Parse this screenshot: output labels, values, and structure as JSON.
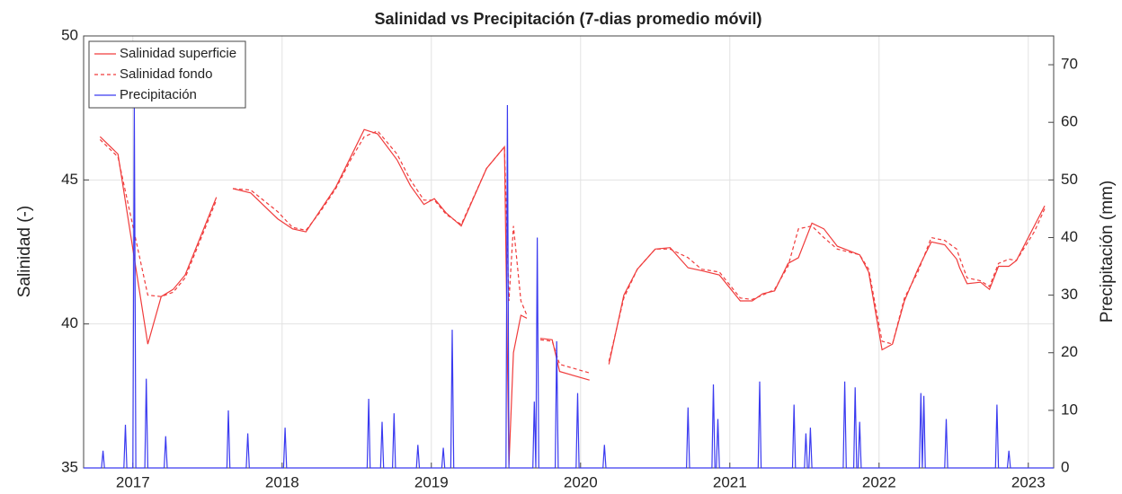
{
  "chart_data": {
    "type": "line",
    "title": "Salinidad vs Precipitación (7-dias promedio móvil)",
    "y_label": "Salinidad (-)",
    "y2_label": "Precipitación (mm)",
    "xlim": [
      2016.67,
      2023.17
    ],
    "xticks": [
      2017,
      2018,
      2019,
      2020,
      2021,
      2022,
      2023
    ],
    "ylim": [
      35,
      50
    ],
    "yticks": [
      35,
      40,
      45,
      50
    ],
    "y2lim": [
      0,
      75
    ],
    "y2ticks": [
      0,
      10,
      20,
      30,
      40,
      50,
      60,
      70
    ],
    "grid": true,
    "legend": "upper left",
    "x": [
      2016.78,
      2016.9,
      2017.1,
      2017.19,
      2017.27,
      2017.35,
      2017.56,
      2017.61,
      2017.67,
      2017.79,
      2017.97,
      2018.07,
      2018.16,
      2018.25,
      2018.36,
      2018.46,
      2018.55,
      2018.64,
      2018.77,
      2018.86,
      2018.95,
      2019.02,
      2019.1,
      2019.2,
      2019.37,
      2019.49,
      2019.52,
      2019.55,
      2019.6,
      2019.64,
      2019.68,
      2019.73,
      2019.81,
      2019.86,
      2020.06,
      2020.12,
      2020.19,
      2020.29,
      2020.38,
      2020.5,
      2020.6,
      2020.72,
      2020.81,
      2020.93,
      2021.07,
      2021.15,
      2021.22,
      2021.3,
      2021.39,
      2021.46,
      2021.55,
      2021.63,
      2021.72,
      2021.87,
      2021.93,
      2022.02,
      2022.09,
      2022.17,
      2022.26,
      2022.35,
      2022.44,
      2022.52,
      2022.54,
      2022.59,
      2022.68,
      2022.74,
      2022.8,
      2022.87,
      2022.92,
      2023.04,
      2023.11
    ],
    "series": [
      {
        "name": "Salinidad superficie",
        "color": "#f03c3c",
        "dash": false,
        "values": [
          46.5,
          45.9,
          39.3,
          40.95,
          41.2,
          41.7,
          44.4,
          null,
          44.7,
          44.55,
          43.65,
          43.3,
          43.2,
          43.9,
          44.75,
          45.8,
          46.75,
          46.6,
          45.7,
          44.8,
          44.15,
          44.35,
          43.85,
          43.4,
          45.4,
          46.15,
          35.1,
          39.0,
          40.3,
          40.2,
          null,
          39.5,
          39.45,
          38.35,
          38.05,
          null,
          38.6,
          41.0,
          41.9,
          42.6,
          42.65,
          41.95,
          41.85,
          41.7,
          40.8,
          40.8,
          41.05,
          41.15,
          42.1,
          42.3,
          43.5,
          43.3,
          42.7,
          42.4,
          41.8,
          39.1,
          39.3,
          40.8,
          41.9,
          42.85,
          42.75,
          42.25,
          41.95,
          41.4,
          41.45,
          41.2,
          42.0,
          42.0,
          42.2,
          43.4,
          44.1
        ]
      },
      {
        "name": "Salinidad fondo",
        "color": "#f03c3c",
        "dash": true,
        "values": [
          46.4,
          45.8,
          41.0,
          40.95,
          41.1,
          41.6,
          44.3,
          null,
          44.7,
          44.65,
          43.9,
          43.35,
          43.25,
          43.85,
          44.7,
          45.7,
          46.5,
          46.7,
          45.9,
          45.0,
          44.3,
          44.3,
          43.8,
          43.45,
          45.4,
          46.15,
          40.8,
          43.4,
          40.8,
          40.3,
          null,
          39.45,
          39.4,
          38.6,
          38.3,
          null,
          38.7,
          40.9,
          41.9,
          42.6,
          42.6,
          42.3,
          41.9,
          41.8,
          40.9,
          40.85,
          41.0,
          41.2,
          42.0,
          43.3,
          43.4,
          43.0,
          42.6,
          42.4,
          41.9,
          39.4,
          39.3,
          40.9,
          41.8,
          43.0,
          42.9,
          42.6,
          42.3,
          41.6,
          41.5,
          41.3,
          42.1,
          42.25,
          42.2,
          43.2,
          44.0
        ]
      },
      {
        "name": "Precipitación",
        "color": "#3a3af0",
        "dash": false,
        "axis": "y2",
        "x": [
          2016.67,
          2016.79,
          2016.8,
          2016.81,
          2016.94,
          2016.95,
          2016.96,
          2017.0,
          2017.01,
          2017.02,
          2017.08,
          2017.09,
          2017.1,
          2017.21,
          2017.22,
          2017.23,
          2017.63,
          2017.64,
          2017.65,
          2017.76,
          2017.77,
          2017.78,
          2018.01,
          2018.02,
          2018.03,
          2018.57,
          2018.58,
          2018.59,
          2018.66,
          2018.67,
          2018.68,
          2018.74,
          2018.75,
          2018.76,
          2018.9,
          2018.91,
          2018.92,
          2019.07,
          2019.08,
          2019.09,
          2019.13,
          2019.14,
          2019.15,
          2019.5,
          2019.51,
          2019.52,
          2019.68,
          2019.69,
          2019.7,
          2019.7,
          2019.71,
          2019.72,
          2019.83,
          2019.84,
          2019.85,
          2019.97,
          2019.98,
          2019.99,
          2020.15,
          2020.16,
          2020.17,
          2020.71,
          2020.72,
          2020.73,
          2020.88,
          2020.89,
          2020.9,
          2020.91,
          2020.92,
          2020.93,
          2021.19,
          2021.2,
          2021.21,
          2021.42,
          2021.43,
          2021.44,
          2021.5,
          2021.51,
          2021.52,
          2021.53,
          2021.54,
          2021.55,
          2021.76,
          2021.77,
          2021.78,
          2021.83,
          2021.84,
          2021.85,
          2021.86,
          2021.87,
          2021.88,
          2022.27,
          2022.28,
          2022.29,
          2022.29,
          2022.3,
          2022.31,
          2022.44,
          2022.45,
          2022.46,
          2022.78,
          2022.79,
          2022.8,
          2022.86,
          2022.87,
          2022.88,
          2023.17
        ],
        "values": [
          0,
          0,
          3,
          0,
          0,
          7.5,
          0,
          0,
          63,
          0,
          0,
          15.5,
          0,
          0,
          5.5,
          0,
          0,
          10,
          0,
          0,
          6,
          0,
          0,
          7,
          0,
          0,
          12,
          0,
          0,
          8,
          0,
          0,
          9.5,
          0,
          0,
          4,
          0,
          0,
          3.5,
          0,
          0,
          24,
          0,
          0,
          63,
          0,
          0,
          11.5,
          0,
          0,
          40,
          0,
          0,
          22,
          0,
          0,
          13,
          0,
          0,
          4,
          0,
          0,
          10.5,
          0,
          0,
          14.5,
          0,
          0,
          8.5,
          0,
          0,
          15,
          0,
          0,
          11,
          0,
          0,
          6,
          0,
          0,
          7,
          0,
          0,
          15,
          0,
          0,
          14,
          0,
          0,
          8,
          0,
          0,
          13,
          0,
          0,
          12.5,
          0,
          0,
          8.5,
          0,
          0,
          11,
          0,
          0,
          3,
          0,
          0
        ]
      }
    ]
  }
}
